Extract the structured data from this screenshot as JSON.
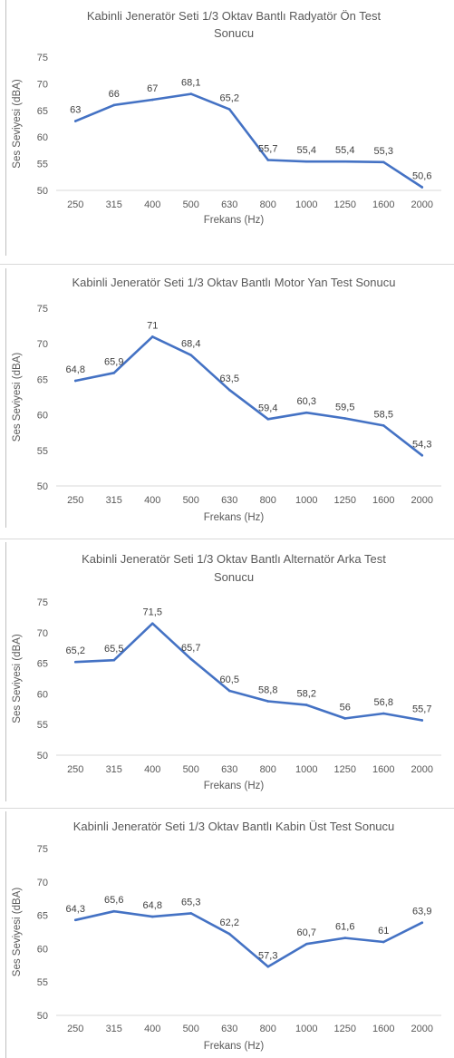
{
  "chart_data": [
    {
      "type": "line",
      "title": "Kabinli Jeneratör Seti 1/3 Oktav Bantlı Radyatör Ön Test Sonucu",
      "title_lines": [
        "Kabinli Jeneratör Seti 1/3 Oktav Bantlı Radyatör Ön Test",
        "Sonucu"
      ],
      "xlabel": "Frekans (Hz)",
      "ylabel": "Ses Seviyesi (dBA)",
      "ylim": [
        50,
        75
      ],
      "yticks": [
        "50",
        "55",
        "60",
        "65",
        "70",
        "75"
      ],
      "categories": [
        "250",
        "315",
        "400",
        "500",
        "630",
        "800",
        "1000",
        "1250",
        "1600",
        "2000"
      ],
      "values": [
        63,
        66,
        67,
        68.1,
        65.2,
        55.7,
        55.4,
        55.4,
        55.3,
        50.6
      ],
      "value_labels": [
        "63",
        "66",
        "67",
        "68,1",
        "65,2",
        "55,7",
        "55,4",
        "55,4",
        "55,3",
        "50,6"
      ],
      "grid": false,
      "color": "#4472c4"
    },
    {
      "type": "line",
      "title": "Kabinli Jeneratör Seti 1/3 Oktav Bantlı Motor Yan Test Sonucu",
      "title_lines": [
        "Kabinli Jeneratör Seti 1/3 Oktav Bantlı Motor Yan Test Sonucu"
      ],
      "xlabel": "Frekans (Hz)",
      "ylabel": "Ses Seviyesi (dBA)",
      "ylim": [
        50,
        75
      ],
      "yticks": [
        "50",
        "55",
        "60",
        "65",
        "70",
        "75"
      ],
      "categories": [
        "250",
        "315",
        "400",
        "500",
        "630",
        "800",
        "1000",
        "1250",
        "1600",
        "2000"
      ],
      "values": [
        64.8,
        65.9,
        71,
        68.4,
        63.5,
        59.4,
        60.3,
        59.5,
        58.5,
        54.3
      ],
      "value_labels": [
        "64,8",
        "65,9",
        "71",
        "68,4",
        "63,5",
        "59,4",
        "60,3",
        "59,5",
        "58,5",
        "54,3"
      ],
      "grid": false,
      "color": "#4472c4"
    },
    {
      "type": "line",
      "title": "Kabinli Jeneratör Seti 1/3 Oktav Bantlı Alternatör Arka Test Sonucu",
      "title_lines": [
        "Kabinli Jeneratör Seti 1/3 Oktav Bantlı Alternatör Arka Test",
        "Sonucu"
      ],
      "xlabel": "Frekans (Hz)",
      "ylabel": "Ses Seviyesi (dBA)",
      "ylim": [
        50,
        75
      ],
      "yticks": [
        "50",
        "55",
        "60",
        "65",
        "70",
        "75"
      ],
      "categories": [
        "250",
        "315",
        "400",
        "500",
        "630",
        "800",
        "1000",
        "1250",
        "1600",
        "2000"
      ],
      "values": [
        65.2,
        65.5,
        71.5,
        65.7,
        60.5,
        58.8,
        58.2,
        56,
        56.8,
        55.7
      ],
      "value_labels": [
        "65,2",
        "65,5",
        "71,5",
        "65,7",
        "60,5",
        "58,8",
        "58,2",
        "56",
        "56,8",
        "55,7"
      ],
      "grid": false,
      "color": "#4472c4"
    },
    {
      "type": "line",
      "title": "Kabinli Jeneratör Seti 1/3 Oktav Bantlı Kabin Üst Test Sonucu",
      "title_lines": [
        "Kabinli Jeneratör Seti 1/3 Oktav Bantlı Kabin Üst Test Sonucu"
      ],
      "xlabel": "Frekans (Hz)",
      "ylabel": "Ses Seviyesi (dBA)",
      "ylim": [
        50,
        75
      ],
      "yticks": [
        "50",
        "55",
        "60",
        "65",
        "70",
        "75"
      ],
      "categories": [
        "250",
        "315",
        "400",
        "500",
        "630",
        "800",
        "1000",
        "1250",
        "1600",
        "2000"
      ],
      "values": [
        64.3,
        65.6,
        64.8,
        65.3,
        62.2,
        57.3,
        60.7,
        61.6,
        61,
        63.9
      ],
      "value_labels": [
        "64,3",
        "65,6",
        "64,8",
        "65,3",
        "62,2",
        "57,3",
        "60,7",
        "61,6",
        "61",
        "63,9"
      ],
      "grid": false,
      "color": "#4472c4"
    }
  ]
}
